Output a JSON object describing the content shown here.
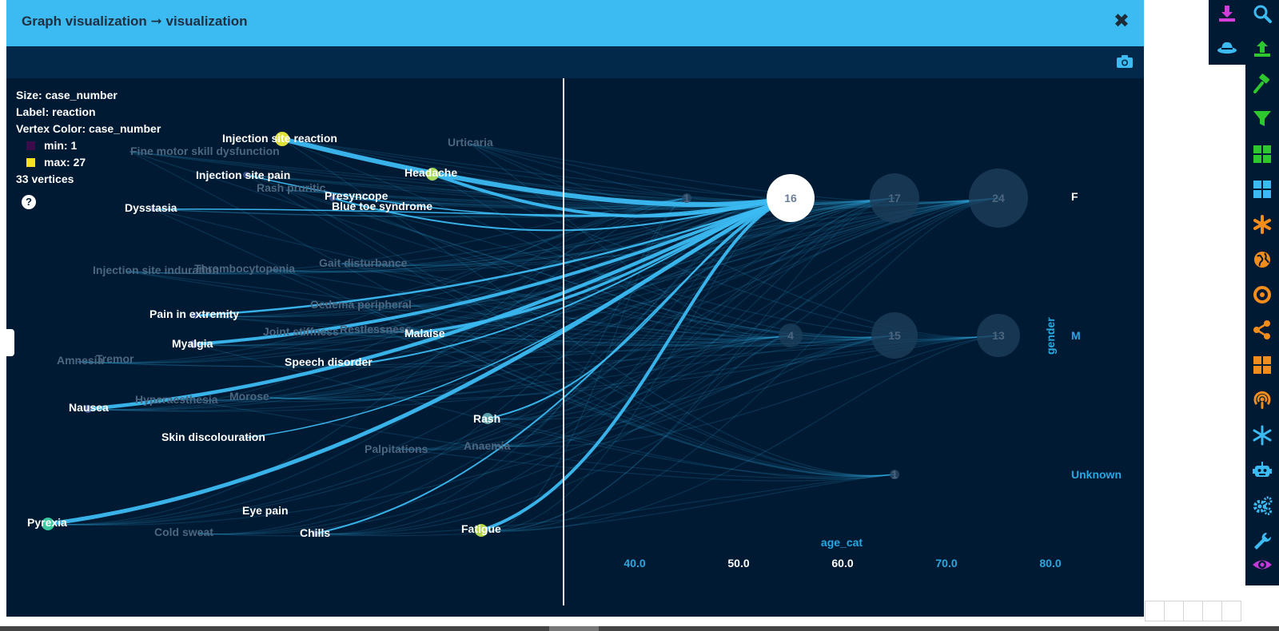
{
  "modal": {
    "title": "Graph visualization ➞ visualization",
    "close_glyph": "✖"
  },
  "legend": {
    "size": "Size: case_number",
    "label": "Label: reaction",
    "vertex_color": "Vertex Color: case_number",
    "min_label": "min: 1",
    "max_label": "max: 27",
    "min_color": "#3a0d4a",
    "max_color": "#f5e11c",
    "vertices": "33 vertices",
    "help_glyph": "?"
  },
  "reaction_labels": {
    "highlighted": [
      "Injection site reaction",
      "Headache",
      "Injection site pain",
      "Presyncope",
      "Blue toe syndrome",
      "Dysstasia",
      "Pain in extremity",
      "Myalgia",
      "Malaise",
      "Speech disorder",
      "Nausea",
      "Rash",
      "Skin discolouration",
      "Eye pain",
      "Chills",
      "Fatigue",
      "Pyrexia"
    ],
    "dimmed": [
      "Fine motor skill dysfunction",
      "Urticaria",
      "Rash pruritic",
      "Injection site induration",
      "Thrombocytopenia",
      "Gait disturbance",
      "Oedema peripheral",
      "Joint stiffness",
      "Restlessness",
      "Amnesia",
      "Tremor",
      "Hyperaesthesia",
      "Morose",
      "Palpitations",
      "Anaemia",
      "Cold sweat"
    ]
  },
  "category_nodes": [
    "1",
    "16",
    "17",
    "24",
    "4",
    "15",
    "13",
    "1"
  ],
  "axes": {
    "x_title": "age_cat",
    "x_ticks": [
      "40.0",
      "50.0",
      "60.0",
      "70.0",
      "80.0"
    ],
    "y_title": "gender",
    "y_ticks": [
      "F",
      "M",
      "Unknown"
    ]
  },
  "colors": {
    "header": "#3bbbf2",
    "background": "#001a33",
    "edge": "#3bbbf2",
    "accent": "#29a8e0"
  },
  "toolbar_icons": [
    "download-icon",
    "hat-icon",
    "search-icon",
    "upload-icon",
    "hammer-icon",
    "filter-icon",
    "grid-green-icon",
    "grid-blue-icon",
    "asterisk-icon",
    "globe-icon",
    "circle-icon",
    "share-icon",
    "grid-orange-icon",
    "podcast-icon",
    "snowflake-icon",
    "robot-icon",
    "cogs-icon",
    "wrench-icon",
    "eye-icon"
  ]
}
